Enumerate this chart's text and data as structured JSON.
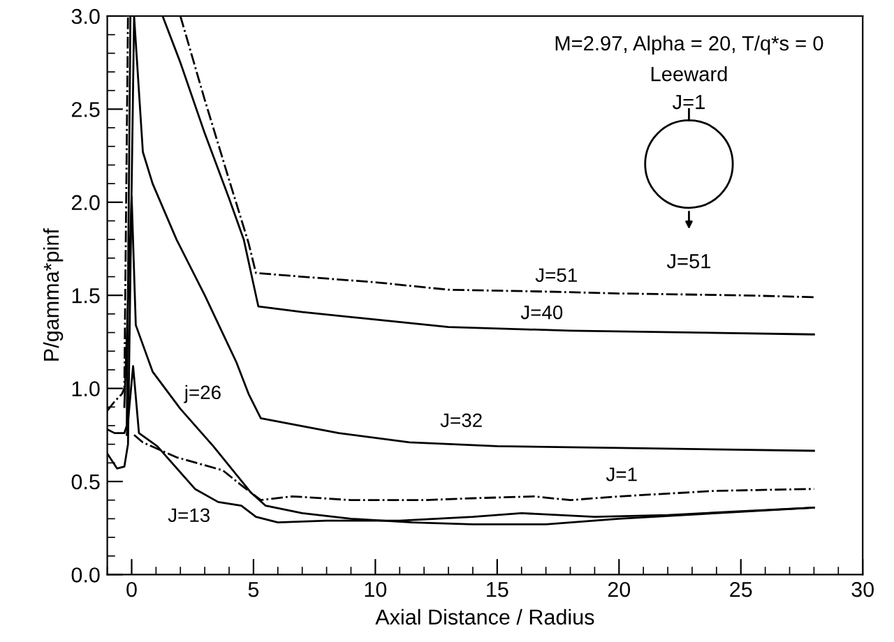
{
  "chart_data": {
    "type": "line",
    "xlabel": "Axial Distance / Radius",
    "ylabel": "P/gamma*pinf",
    "xlim": [
      -1,
      30
    ],
    "xticks": [
      0,
      5,
      10,
      15,
      20,
      25,
      30
    ],
    "ylim": [
      0,
      3
    ],
    "yticks": [
      {
        "value": 0,
        "label": "0.0"
      },
      {
        "value": 0.5,
        "label": "0.5"
      },
      {
        "value": 1,
        "label": "1.0"
      },
      {
        "value": 1.5,
        "label": "1.5"
      },
      {
        "value": 2,
        "label": "2.0"
      },
      {
        "value": 2.5,
        "label": "2.5"
      },
      {
        "value": 3,
        "label": "3.0"
      }
    ],
    "grid": false,
    "marker": "none",
    "series": [
      {
        "color": "#000000",
        "line_style": "dashed",
        "x": [
          -1,
          -0.7,
          -0.4,
          -0.3,
          -0.15,
          1,
          2.0,
          3.0,
          4.0,
          4.8,
          5.1,
          7,
          10,
          13,
          17,
          20,
          25,
          28
        ],
        "values": [
          0.88,
          0.93,
          0.97,
          1.0,
          3.0,
          null,
          3.0,
          2.55,
          2.12,
          1.78,
          1.62,
          1.6,
          1.57,
          1.53,
          1.52,
          1.51,
          1.5,
          1.49
        ]
      },
      {
        "color": "#000000",
        "line_style": "solid",
        "x": [
          -1,
          -0.7,
          -0.3,
          -0.2,
          -0.05,
          0.5,
          1.27,
          2,
          3,
          4,
          4.6,
          4.9,
          5.2,
          7,
          10,
          13,
          18,
          28
        ],
        "values": [
          0.78,
          0.76,
          0.76,
          0.8,
          3.0,
          null,
          3.0,
          2.75,
          2.37,
          2.02,
          1.8,
          1.62,
          1.44,
          1.41,
          1.37,
          1.33,
          1.31,
          1.29
        ]
      },
      {
        "color": "#000000",
        "line_style": "solid",
        "x": [
          -1,
          -0.6,
          -0.3,
          -0.15,
          0.1,
          0.46,
          0.86,
          1.84,
          3.0,
          4.3,
          4.8,
          5.3,
          8.5,
          11.4,
          15,
          20,
          28
        ],
        "values": [
          0.65,
          0.57,
          0.58,
          0.7,
          3.0,
          2.27,
          2.1,
          1.8,
          1.5,
          1.14,
          0.97,
          0.84,
          0.76,
          0.71,
          0.69,
          0.68,
          0.665
        ]
      },
      {
        "color": "#000000",
        "line_style": "solid",
        "x": [
          -0.3,
          0,
          0.17,
          0.86,
          2,
          3.35,
          4.9,
          5.5,
          7,
          9,
          11.5,
          14,
          17,
          20,
          24,
          28
        ],
        "values": [
          0.9,
          2.03,
          1.34,
          1.09,
          0.89,
          0.69,
          0.44,
          0.37,
          0.33,
          0.3,
          0.28,
          0.27,
          0.27,
          0.3,
          0.33,
          0.36
        ]
      },
      {
        "color": "#000000",
        "line_style": "solid",
        "x": [
          -0.2,
          0.06,
          0.3,
          1.05,
          2.6,
          3.55,
          4.5,
          5.1,
          6,
          8,
          11,
          14,
          16,
          19,
          22,
          25,
          28
        ],
        "values": [
          0.75,
          1.12,
          0.76,
          0.69,
          0.46,
          0.39,
          0.37,
          0.31,
          0.28,
          0.29,
          0.29,
          0.31,
          0.33,
          0.31,
          0.32,
          0.34,
          0.36
        ]
      },
      {
        "color": "#000000",
        "line_style": "dashed",
        "x": [
          0.1,
          0.46,
          1.84,
          3.74,
          4.5,
          5.3,
          6.6,
          9,
          12,
          14,
          16.5,
          18,
          20,
          24,
          28
        ],
        "values": [
          0.75,
          0.71,
          0.63,
          0.56,
          0.48,
          0.4,
          0.42,
          0.4,
          0.4,
          0.41,
          0.42,
          0.4,
          0.42,
          0.45,
          0.46
        ]
      }
    ],
    "annotations": [
      "M=2.97, Alpha = 20, T/q*s = 0",
      "Leeward",
      "J=1",
      "J=51",
      {
        "text": "J=51",
        "x": 16.4,
        "y": 1.52
      },
      {
        "text": "J=40",
        "x": 15.8,
        "y": 1.32
      },
      {
        "text": "J=32",
        "x": 12.5,
        "y": 0.74
      },
      {
        "text": "j=26",
        "x": 2,
        "y": 0.89
      },
      {
        "text": "J=13",
        "x": 3.55,
        "y": 0.39
      },
      {
        "text": "J=1",
        "x": 19.3,
        "y": 0.45
      }
    ]
  }
}
